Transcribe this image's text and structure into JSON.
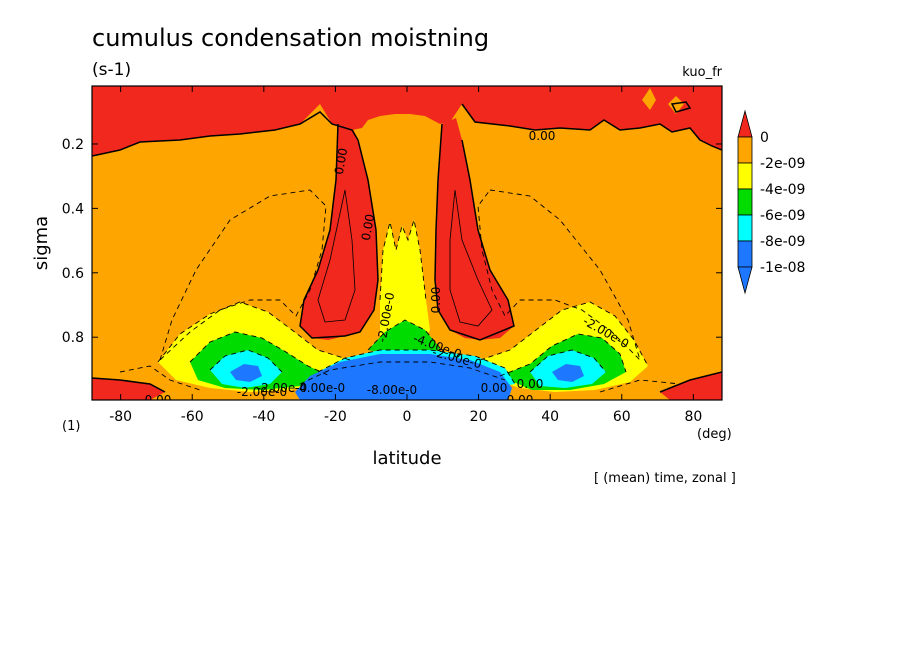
{
  "chart_data": {
    "type": "heatmap",
    "title": "cumulus condensation moistning",
    "units": "(s-1)",
    "variable": "kuo_fr",
    "xlabel": "latitude",
    "ylabel": "sigma",
    "x_unit": "(deg)",
    "y_unit": "(1)",
    "footer": "[ (mean) time, zonal ]",
    "xlim": [
      -88,
      88
    ],
    "ylim": [
      0.995,
      0.02
    ],
    "x_ticks": [
      -80,
      -60,
      -40,
      -20,
      0,
      20,
      40,
      60,
      80
    ],
    "x_tick_labels": [
      "-80",
      "-60",
      "-40",
      "-20",
      "0",
      "20",
      "40",
      "60",
      "80"
    ],
    "y_ticks": [
      0.2,
      0.4,
      0.6,
      0.8
    ],
    "y_tick_labels": [
      "0.2",
      "0.4",
      "0.6",
      "0.8"
    ],
    "legend": {
      "placement": "right",
      "levels": [
        {
          "label": "0",
          "color": "#f0281e"
        },
        {
          "label": "-2e-09",
          "color": "#ffa500"
        },
        {
          "label": "-4e-09",
          "color": "#ffff00"
        },
        {
          "label": "-6e-09",
          "color": "#00dc00"
        },
        {
          "label": "-8e-09",
          "color": "#00ffff"
        },
        {
          "label": "-1e-08",
          "color": "#1e78ff"
        }
      ]
    },
    "contour_labels": [
      "0.00",
      "0.00",
      "0.00",
      "0.00",
      "0.00",
      "0.00",
      "-2.00e-0",
      "-2.00e-0",
      "-4.00e-0",
      "-2.00e-0",
      "-2.00e-0",
      "-8.00e-0",
      "-4.00e-0",
      "-2.00e-0",
      "0.00",
      "0.00"
    ]
  },
  "colors": {
    "red": "#f0281e",
    "orange": "#ffa500",
    "yellow": "#ffff00",
    "green": "#00dc00",
    "cyan": "#00ffff",
    "blue": "#1e78ff"
  }
}
